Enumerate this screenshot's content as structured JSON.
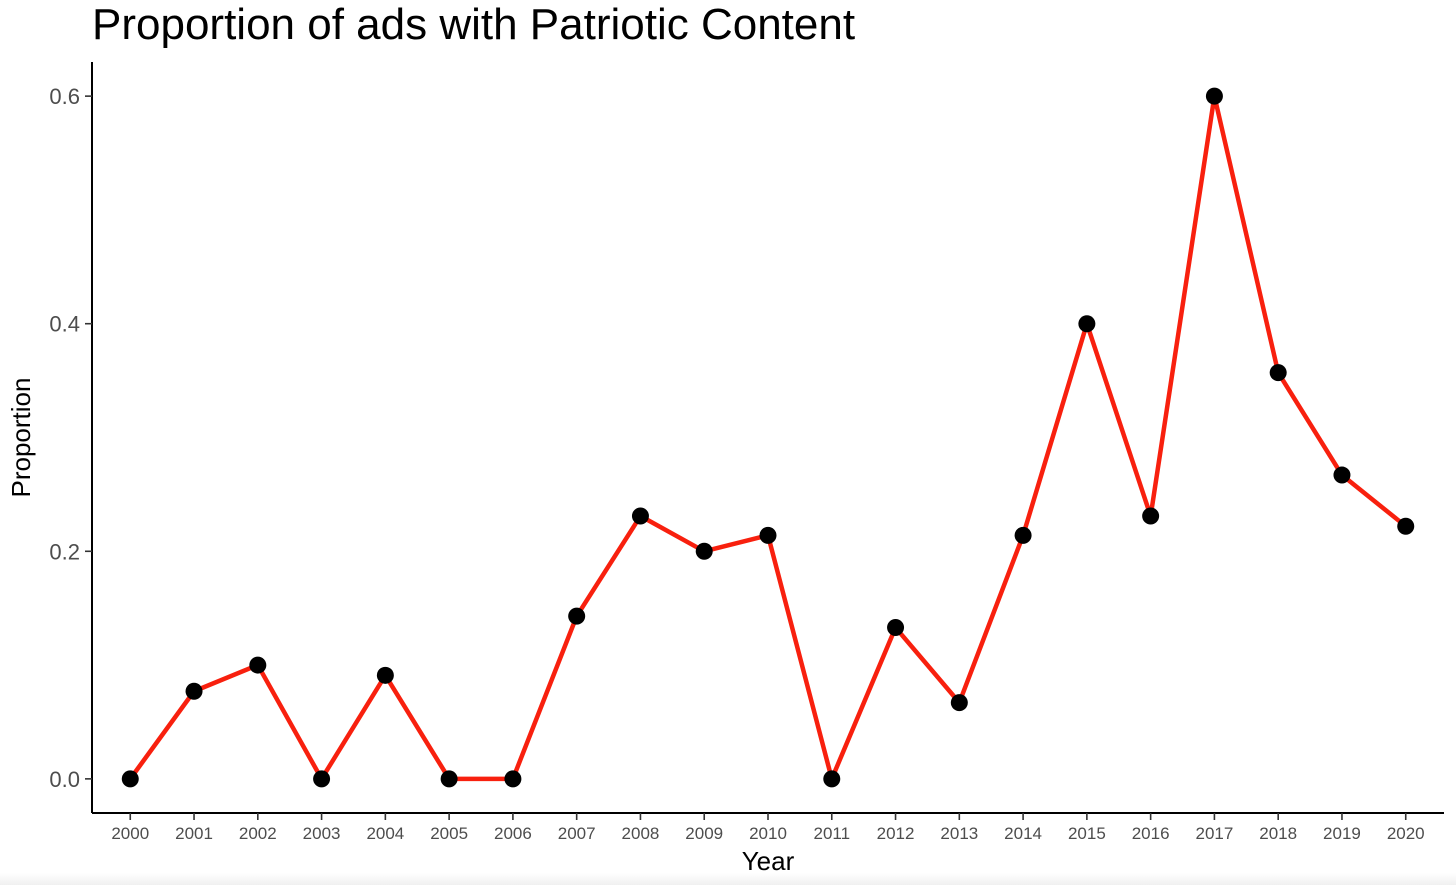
{
  "chart_data": {
    "type": "line",
    "title": "Proportion of ads with Patriotic Content",
    "xlabel": "Year",
    "ylabel": "Proportion",
    "x": [
      2000,
      2001,
      2002,
      2003,
      2004,
      2005,
      2006,
      2007,
      2008,
      2009,
      2010,
      2011,
      2012,
      2013,
      2014,
      2015,
      2016,
      2017,
      2018,
      2019,
      2020
    ],
    "x_tick_labels": [
      "2000",
      "2001",
      "2002",
      "2003",
      "2004",
      "2005",
      "2006",
      "2007",
      "2008",
      "2009",
      "2010",
      "2011",
      "2012",
      "2013",
      "2014",
      "2015",
      "2016",
      "2017",
      "2018",
      "2019",
      "2020"
    ],
    "series": [
      {
        "values": [
          0.0,
          0.077,
          0.1,
          0.0,
          0.091,
          0.0,
          0.0,
          0.143,
          0.231,
          0.2,
          0.214,
          0.0,
          0.133,
          0.067,
          0.214,
          0.4,
          0.231,
          0.6,
          0.357,
          0.267,
          0.222
        ],
        "line_color": "#f8200e",
        "point_color": "#000000"
      }
    ],
    "y_ticks": [
      0.0,
      0.2,
      0.4,
      0.6
    ],
    "y_tick_labels": [
      "0.0",
      "0.2",
      "0.4",
      "0.6"
    ],
    "ylim": [
      -0.03,
      0.63
    ],
    "xlim": [
      1999.4,
      2020.6
    ],
    "grid": false,
    "legend": "none"
  }
}
